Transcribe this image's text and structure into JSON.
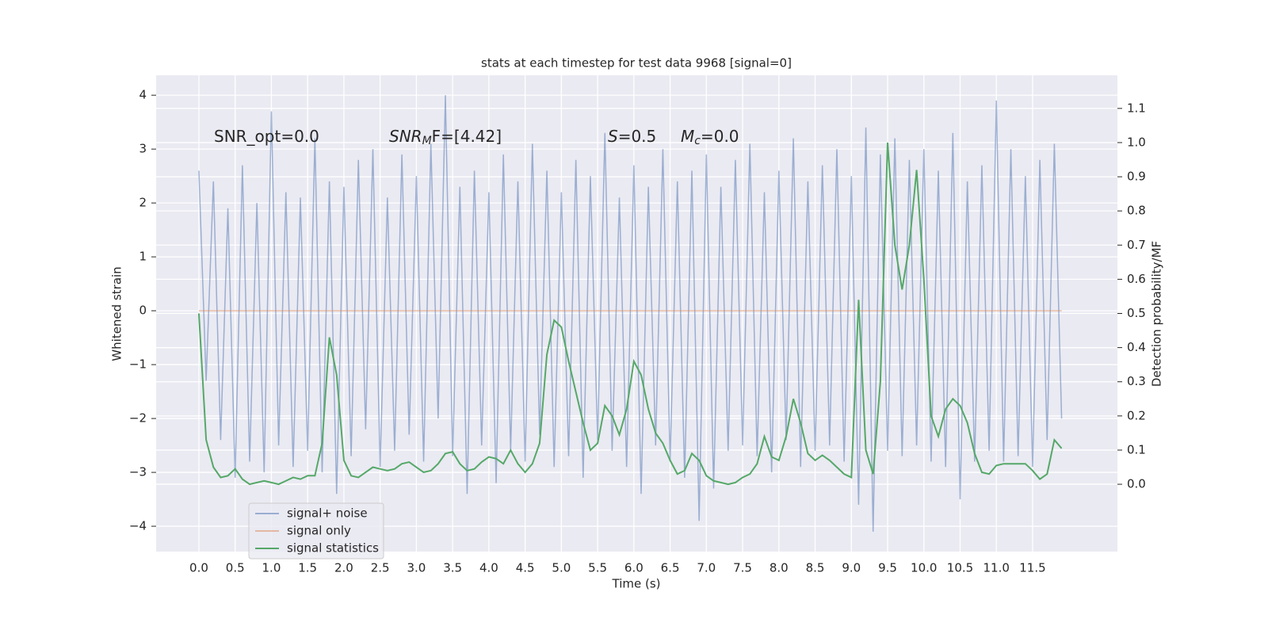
{
  "chart_data": {
    "type": "line",
    "title": "stats at each timestep for test data 9968 [signal=0]",
    "xlabel": "Time (s)",
    "ylabel": "Whitened strain",
    "y2label": "Detection probability/MF",
    "annotations": [
      [
        "SNR_opt=0.0"
      ],
      [
        "SNR",
        "M",
        "F=[4.42]"
      ],
      [
        "S",
        "=0.5"
      ],
      [
        "M",
        "c",
        "=0.0"
      ]
    ],
    "grid": true,
    "legend": "lower left",
    "xlim": [
      -0.59,
      12.67
    ],
    "xticks": [
      {
        "value": 0,
        "label": "0.0"
      },
      0.5,
      {
        "value": 1,
        "label": "1.0"
      },
      1.5,
      {
        "value": 2,
        "label": "2.0"
      },
      2.5,
      {
        "value": 3,
        "label": "3.0"
      },
      3.5,
      {
        "value": 4,
        "label": "4.0"
      },
      4.5,
      {
        "value": 5,
        "label": "5.0"
      },
      5.5,
      {
        "value": 6,
        "label": "6.0"
      },
      6.5,
      {
        "value": 7,
        "label": "7.0"
      },
      7.5,
      {
        "value": 8,
        "label": "8.0"
      },
      8.5,
      {
        "value": 9,
        "label": "9.0"
      },
      9.5,
      {
        "value": 10,
        "label": "10.0"
      },
      10.5,
      {
        "value": 11,
        "label": "11.0"
      },
      11.5
    ],
    "ylim": [
      -4.47,
      4.37
    ],
    "yticks": [
      {
        "value": -4,
        "label": "−4"
      },
      {
        "value": -3,
        "label": "−3"
      },
      {
        "value": -2,
        "label": "−2"
      },
      {
        "value": -1,
        "label": "−1"
      },
      0,
      1,
      2,
      3,
      4
    ],
    "y2lim": [
      -0.197,
      1.197
    ],
    "y2ticks": [
      {
        "value": 0,
        "label": "0.0"
      },
      0.1,
      0.2,
      0.3,
      0.4,
      0.5,
      0.6,
      0.7,
      0.8,
      0.9,
      {
        "value": 1,
        "label": "1.0"
      },
      1.1
    ],
    "x": [
      0,
      0.1,
      0.2,
      0.3,
      0.4,
      0.5,
      0.6,
      0.7,
      0.8,
      0.9,
      1,
      1.1,
      1.2,
      1.3,
      1.4,
      1.5,
      1.6,
      1.7,
      1.8,
      1.9,
      2,
      2.1,
      2.2,
      2.3,
      2.4,
      2.5,
      2.6,
      2.7,
      2.8,
      2.9,
      3,
      3.1,
      3.2,
      3.3,
      3.4,
      3.5,
      3.6,
      3.7,
      3.8,
      3.9,
      4,
      4.1,
      4.2,
      4.3,
      4.4,
      4.5,
      4.6,
      4.7,
      4.8,
      4.9,
      5,
      5.1,
      5.2,
      5.3,
      5.4,
      5.5,
      5.6,
      5.7,
      5.8,
      5.9,
      6,
      6.1,
      6.2,
      6.3,
      6.4,
      6.5,
      6.6,
      6.7,
      6.8,
      6.9,
      7,
      7.1,
      7.2,
      7.3,
      7.4,
      7.5,
      7.6,
      7.7,
      7.8,
      7.9,
      8,
      8.1,
      8.2,
      8.3,
      8.4,
      8.5,
      8.6,
      8.7,
      8.8,
      8.9,
      9,
      9.1,
      9.2,
      9.3,
      9.4,
      9.5,
      9.6,
      9.7,
      9.8,
      9.9,
      10,
      10.1,
      10.2,
      10.3,
      10.4,
      10.5,
      10.6,
      10.7,
      10.8,
      10.9,
      11,
      11.1,
      11.2,
      11.3,
      11.4,
      11.5,
      11.6,
      11.7,
      11.8,
      11.9
    ],
    "series": [
      {
        "name": "signal+ noise",
        "color": "#4c72b0",
        "opacity": 0.5,
        "values": [
          2.6,
          -1.3,
          2.4,
          -2.4,
          1.9,
          -3.1,
          2.7,
          -2.8,
          2.0,
          -3.0,
          3.7,
          -2.5,
          2.2,
          -2.9,
          2.1,
          -2.6,
          3.2,
          -3.0,
          2.4,
          -3.4,
          2.3,
          -2.7,
          2.8,
          -2.2,
          3.0,
          -2.9,
          2.1,
          -2.6,
          2.9,
          -2.3,
          2.5,
          -2.8,
          3.1,
          -2.0,
          4.0,
          -2.7,
          2.3,
          -3.4,
          2.6,
          -2.5,
          2.2,
          -3.2,
          2.9,
          -2.6,
          2.4,
          -2.8,
          3.1,
          -2.3,
          2.6,
          -2.9,
          2.2,
          -2.7,
          2.8,
          -3.1,
          2.5,
          -2.4,
          3.3,
          -2.6,
          2.1,
          -2.9,
          2.7,
          -3.4,
          2.3,
          -2.5,
          3.0,
          -2.8,
          2.4,
          -3.1,
          2.6,
          -3.9,
          2.9,
          -3.3,
          2.3,
          -2.6,
          2.8,
          -2.5,
          3.1,
          -2.7,
          2.2,
          -3.0,
          2.6,
          -2.4,
          3.2,
          -2.9,
          2.4,
          -2.6,
          2.7,
          -2.5,
          3.0,
          -2.8,
          2.5,
          -3.6,
          3.4,
          -4.1,
          2.9,
          -2.6,
          3.2,
          -2.7,
          2.8,
          -2.5,
          3.0,
          -2.8,
          2.6,
          -2.9,
          3.3,
          -3.5,
          2.4,
          -2.8,
          2.7,
          -2.6,
          3.9,
          -2.8,
          3.0,
          -2.7,
          2.5,
          -2.9,
          2.8,
          -2.4,
          3.1,
          -2.0
        ]
      },
      {
        "name": "signal only",
        "color": "#dd8452",
        "opacity": 0.5,
        "values": [
          0,
          0,
          0,
          0,
          0,
          0,
          0,
          0,
          0,
          0,
          0,
          0,
          0,
          0,
          0,
          0,
          0,
          0,
          0,
          0,
          0,
          0,
          0,
          0,
          0,
          0,
          0,
          0,
          0,
          0,
          0,
          0,
          0,
          0,
          0,
          0,
          0,
          0,
          0,
          0,
          0,
          0,
          0,
          0,
          0,
          0,
          0,
          0,
          0,
          0,
          0,
          0,
          0,
          0,
          0,
          0,
          0,
          0,
          0,
          0,
          0,
          0,
          0,
          0,
          0,
          0,
          0,
          0,
          0,
          0,
          0,
          0,
          0,
          0,
          0,
          0,
          0,
          0,
          0,
          0,
          0,
          0,
          0,
          0,
          0,
          0,
          0,
          0,
          0,
          0,
          0,
          0,
          0,
          0,
          0,
          0,
          0,
          0,
          0,
          0,
          0,
          0,
          0,
          0,
          0,
          0,
          0,
          0,
          0,
          0,
          0,
          0,
          0,
          0,
          0,
          0,
          0,
          0,
          0,
          0
        ]
      },
      {
        "name": "signal statistics",
        "color": "#55a868",
        "opacity": 1,
        "axis": "y2",
        "values": [
          0.5,
          0.13,
          0.05,
          0.02,
          0.025,
          0.045,
          0.015,
          0.0,
          0.005,
          0.01,
          0.005,
          0.0,
          0.01,
          0.02,
          0.015,
          0.025,
          0.025,
          0.12,
          0.43,
          0.32,
          0.07,
          0.025,
          0.02,
          0.035,
          0.05,
          0.045,
          0.04,
          0.045,
          0.06,
          0.065,
          0.05,
          0.035,
          0.04,
          0.06,
          0.09,
          0.095,
          0.06,
          0.04,
          0.045,
          0.065,
          0.08,
          0.075,
          0.06,
          0.1,
          0.06,
          0.035,
          0.06,
          0.12,
          0.38,
          0.48,
          0.46,
          0.36,
          0.27,
          0.18,
          0.1,
          0.12,
          0.23,
          0.2,
          0.145,
          0.22,
          0.36,
          0.32,
          0.22,
          0.15,
          0.12,
          0.07,
          0.03,
          0.04,
          0.09,
          0.07,
          0.025,
          0.01,
          0.005,
          0.0,
          0.005,
          0.02,
          0.03,
          0.06,
          0.14,
          0.08,
          0.07,
          0.14,
          0.25,
          0.18,
          0.09,
          0.07,
          0.085,
          0.07,
          0.05,
          0.03,
          0.02,
          0.54,
          0.1,
          0.03,
          0.3,
          1.0,
          0.7,
          0.57,
          0.7,
          0.92,
          0.6,
          0.2,
          0.14,
          0.22,
          0.25,
          0.23,
          0.18,
          0.09,
          0.035,
          0.03,
          0.055,
          0.06,
          0.06,
          0.06,
          0.06,
          0.04,
          0.015,
          0.03,
          0.13,
          0.105
        ]
      }
    ]
  }
}
